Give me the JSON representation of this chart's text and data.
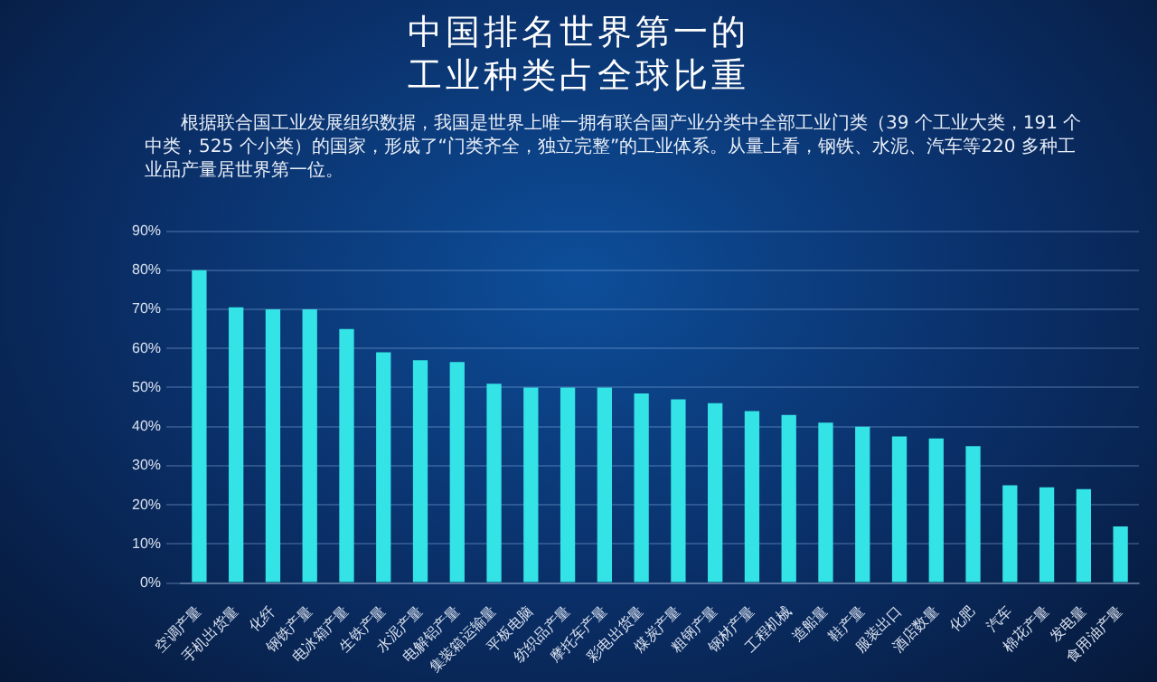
{
  "chart_data": {
    "type": "bar",
    "title": "中国排名世界第一的工业种类占全球比重",
    "subtitle": "根据联合国工业发展组织数据，我国是世界上唯一拥有联合国产业分类中全部工业门类（39 个工业大类，191 个中类，525 个小类）的国家，形成了“门类齐全，独立完整”的工业体系。从量上看，钢铁、水泥、汽车等220 多种工业品产量居世界第一位。",
    "categories": [
      "空调产量",
      "手机出货量",
      "化纤",
      "钢铁产量",
      "电冰箱产量",
      "生铁产量",
      "水泥产量",
      "电解铝产量",
      "集装箱运输量",
      "平板电脑",
      "纺织品产量",
      "摩托车产量",
      "彩电出货量",
      "煤炭产量",
      "粗钢产量",
      "钢材产量",
      "工程机械",
      "造船量",
      "鞋产量",
      "服装出口",
      "酒店数量",
      "化肥",
      "汽车",
      "棉花产量",
      "发电量",
      "食用油产量"
    ],
    "values": [
      80,
      70.5,
      70,
      70,
      65,
      59,
      57,
      56.5,
      51,
      50,
      50,
      50,
      48.5,
      47,
      46,
      44,
      43,
      41,
      40,
      37.5,
      37,
      35,
      25,
      24.5,
      24,
      14.5
    ],
    "color": "#33e3e6",
    "ylim": [
      0,
      90
    ],
    "yticks": [
      {
        "value": 0,
        "label": "0%"
      },
      {
        "value": 10,
        "label": "10%"
      },
      {
        "value": 20,
        "label": "20%"
      },
      {
        "value": 30,
        "label": "30%"
      },
      {
        "value": 40,
        "label": "40%"
      },
      {
        "value": 50,
        "label": "50%"
      },
      {
        "value": 60,
        "label": "60%"
      },
      {
        "value": 70,
        "label": "70%"
      },
      {
        "value": 80,
        "label": "80%"
      },
      {
        "value": 90,
        "label": "90%"
      }
    ],
    "grid": "y",
    "legend": false
  }
}
